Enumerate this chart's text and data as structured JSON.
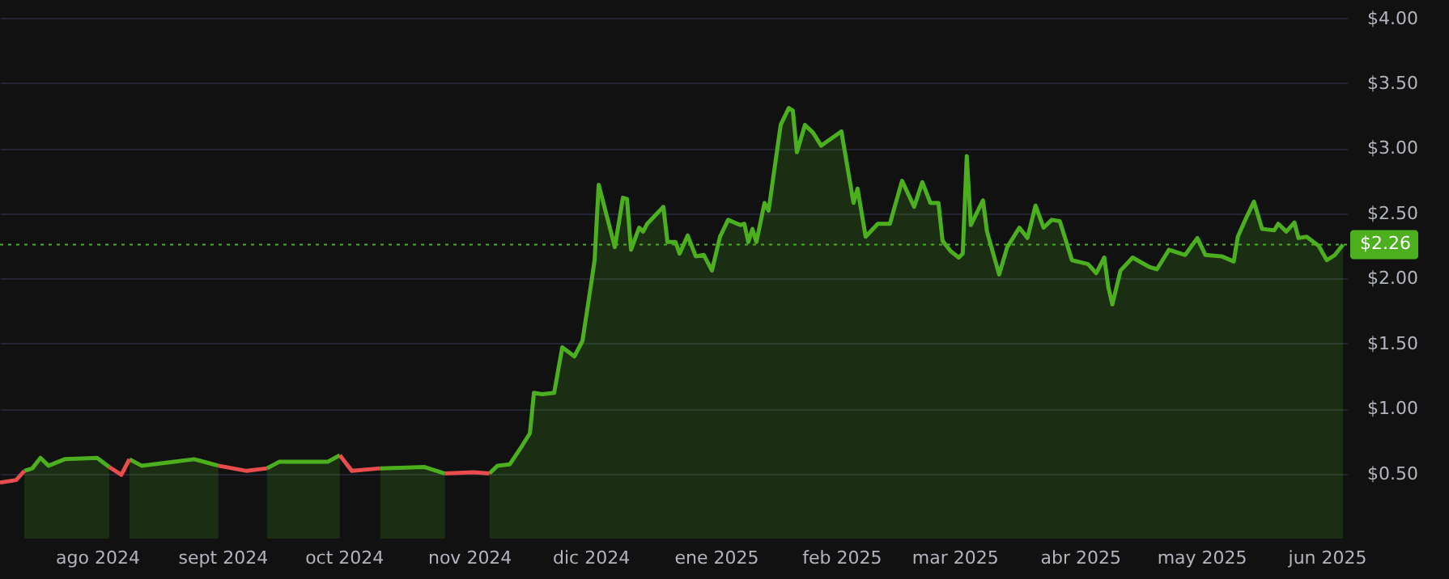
{
  "chart_data": {
    "type": "line",
    "x": [
      "2024-07-08",
      "2024-07-12",
      "2024-07-14",
      "2024-07-16",
      "2024-07-18",
      "2024-07-20",
      "2024-07-24",
      "2024-08-01",
      "2024-08-04",
      "2024-08-07",
      "2024-08-09",
      "2024-08-12",
      "2024-08-20",
      "2024-08-25",
      "2024-08-31",
      "2024-09-07",
      "2024-09-12",
      "2024-09-15",
      "2024-09-27",
      "2024-09-30",
      "2024-10-03",
      "2024-10-10",
      "2024-10-21",
      "2024-10-26",
      "2024-11-02",
      "2024-11-06",
      "2024-11-08",
      "2024-11-11",
      "2024-11-14",
      "2024-11-16",
      "2024-11-17",
      "2024-11-19",
      "2024-11-22",
      "2024-11-24",
      "2024-11-27",
      "2024-11-29",
      "2024-12-01",
      "2024-12-02",
      "2024-12-03",
      "2024-12-07",
      "2024-12-09",
      "2024-12-10",
      "2024-12-11",
      "2024-12-13",
      "2024-12-14",
      "2024-12-15",
      "2024-12-19",
      "2024-12-20",
      "2024-12-22",
      "2024-12-23",
      "2024-12-25",
      "2024-12-27",
      "2024-12-29",
      "2024-12-31",
      "2025-01-02",
      "2025-01-04",
      "2025-01-07",
      "2025-01-08",
      "2025-01-09",
      "2025-01-10",
      "2025-01-11",
      "2025-01-13",
      "2025-01-14",
      "2025-01-17",
      "2025-01-19",
      "2025-01-20",
      "2025-01-21",
      "2025-01-23",
      "2025-01-25",
      "2025-01-27",
      "2025-02-01",
      "2025-02-04",
      "2025-02-05",
      "2025-02-07",
      "2025-02-10",
      "2025-02-13",
      "2025-02-16",
      "2025-02-19",
      "2025-02-21",
      "2025-02-23",
      "2025-02-25",
      "2025-02-26",
      "2025-02-28",
      "2025-03-02",
      "2025-03-03",
      "2025-03-04",
      "2025-03-05",
      "2025-03-08",
      "2025-03-09",
      "2025-03-12",
      "2025-03-14",
      "2025-03-17",
      "2025-03-19",
      "2025-03-21",
      "2025-03-23",
      "2025-03-25",
      "2025-03-27",
      "2025-03-30",
      "2025-04-03",
      "2025-04-05",
      "2025-04-07",
      "2025-04-08",
      "2025-04-09",
      "2025-04-11",
      "2025-04-14",
      "2025-04-18",
      "2025-04-20",
      "2025-04-23",
      "2025-04-27",
      "2025-04-30",
      "2025-05-02",
      "2025-05-06",
      "2025-05-09",
      "2025-05-10",
      "2025-05-12",
      "2025-05-14",
      "2025-05-16",
      "2025-05-19",
      "2025-05-20",
      "2025-05-22",
      "2025-05-24",
      "2025-05-25",
      "2025-05-27",
      "2025-05-30",
      "2025-06-01",
      "2025-06-03",
      "2025-06-05"
    ],
    "series": [
      {
        "type": "area",
        "color": "#4caf1e",
        "values": [
          null,
          null,
          0.52,
          0.54,
          0.62,
          0.56,
          0.61,
          0.62,
          0.55,
          null,
          0.61,
          0.56,
          0.59,
          0.61,
          0.56,
          null,
          0.54,
          0.59,
          0.59,
          0.64,
          null,
          0.54,
          0.55,
          0.5,
          null,
          0.5,
          0.56,
          0.57,
          0.71,
          0.81,
          1.12,
          1.11,
          1.12,
          1.47,
          1.4,
          1.52,
          1.93,
          2.14,
          2.72,
          2.24,
          2.62,
          2.61,
          2.22,
          2.39,
          2.36,
          2.42,
          2.55,
          2.28,
          2.28,
          2.19,
          2.33,
          2.17,
          2.18,
          2.06,
          2.32,
          2.45,
          2.41,
          2.42,
          2.28,
          2.38,
          2.28,
          2.58,
          2.52,
          3.18,
          3.31,
          3.29,
          2.97,
          3.18,
          3.12,
          3.02,
          3.13,
          2.58,
          2.69,
          2.32,
          2.42,
          2.42,
          2.75,
          2.55,
          2.74,
          2.58,
          2.58,
          2.29,
          2.21,
          2.16,
          2.19,
          2.94,
          2.41,
          2.6,
          2.36,
          2.03,
          2.24,
          2.39,
          2.31,
          2.56,
          2.39,
          2.45,
          2.44,
          2.14,
          2.11,
          2.04,
          2.16,
          1.93,
          1.8,
          2.06,
          2.16,
          2.09,
          2.07,
          2.22,
          2.18,
          2.31,
          2.18,
          2.17,
          2.13,
          2.32,
          2.46,
          2.59,
          2.38,
          2.37,
          2.42,
          2.36,
          2.43,
          2.31,
          2.32,
          2.25,
          2.14,
          2.18,
          2.26
        ]
      },
      {
        "color": "#e84c4c",
        "values": [
          0.43,
          0.45,
          0.52,
          null,
          null,
          null,
          null,
          null,
          0.55,
          0.49,
          0.61,
          null,
          null,
          null,
          0.56,
          0.52,
          0.54,
          null,
          null,
          0.64,
          0.52,
          0.54,
          null,
          0.5,
          0.51,
          0.5,
          null,
          null,
          null,
          null,
          null,
          null,
          null,
          null,
          null,
          null,
          null,
          null,
          null,
          null,
          null,
          null,
          null,
          null,
          null,
          null,
          null,
          null,
          null,
          null,
          null,
          null,
          null,
          null,
          null,
          null,
          null,
          null,
          null,
          null,
          null,
          null,
          null,
          null,
          null,
          null,
          null,
          null,
          null,
          null,
          null,
          null,
          null,
          null,
          null,
          null,
          null,
          null,
          null,
          null,
          null,
          null,
          null,
          null,
          null,
          null,
          null,
          null,
          null,
          null,
          null,
          null,
          null,
          null,
          null,
          null,
          null,
          null,
          null,
          null,
          null,
          null,
          null,
          null,
          null,
          null,
          null,
          null,
          null,
          null,
          null,
          null,
          null,
          null,
          null,
          null,
          null,
          null,
          null,
          null,
          null,
          null,
          null,
          null,
          null,
          null,
          null
        ]
      }
    ],
    "xlim": [
      "2024-07-08",
      "2025-06-06"
    ],
    "xticks": [
      {
        "value": "2024-08-01",
        "label": "ago 2024"
      },
      {
        "value": "2024-09-01",
        "label": "sept 2024"
      },
      {
        "value": "2024-10-01",
        "label": "oct 2024"
      },
      {
        "value": "2024-11-01",
        "label": "nov 2024"
      },
      {
        "value": "2024-12-01",
        "label": "dic 2024"
      },
      {
        "value": "2025-01-01",
        "label": "ene 2025"
      },
      {
        "value": "2025-02-01",
        "label": "feb 2025"
      },
      {
        "value": "2025-03-01",
        "label": "mar 2025"
      },
      {
        "value": "2025-04-01",
        "label": "abr 2025"
      },
      {
        "value": "2025-05-01",
        "label": "may 2025"
      },
      {
        "value": "2025-06-01",
        "label": "jun 2025"
      }
    ],
    "ylim": [
      0,
      4.14
    ],
    "yticks": [
      {
        "value": 0.5,
        "label": "$0.50"
      },
      {
        "value": 1.0,
        "label": "$1.00"
      },
      {
        "value": 1.5,
        "label": "$1.50"
      },
      {
        "value": 2.0,
        "label": "$2.00"
      },
      {
        "value": 2.5,
        "label": "$2.50"
      },
      {
        "value": 3.0,
        "label": "$3.00"
      },
      {
        "value": 3.5,
        "label": "$3.50"
      },
      {
        "value": 4.0,
        "label": "$4.00"
      }
    ],
    "ref_lines": [
      {
        "axis": "y",
        "value": 2.26,
        "label": "$2.26",
        "color": "#4caf1e",
        "line_style": "dotted"
      }
    ],
    "grid": "y",
    "marker": "none",
    "line_style": "solid"
  }
}
